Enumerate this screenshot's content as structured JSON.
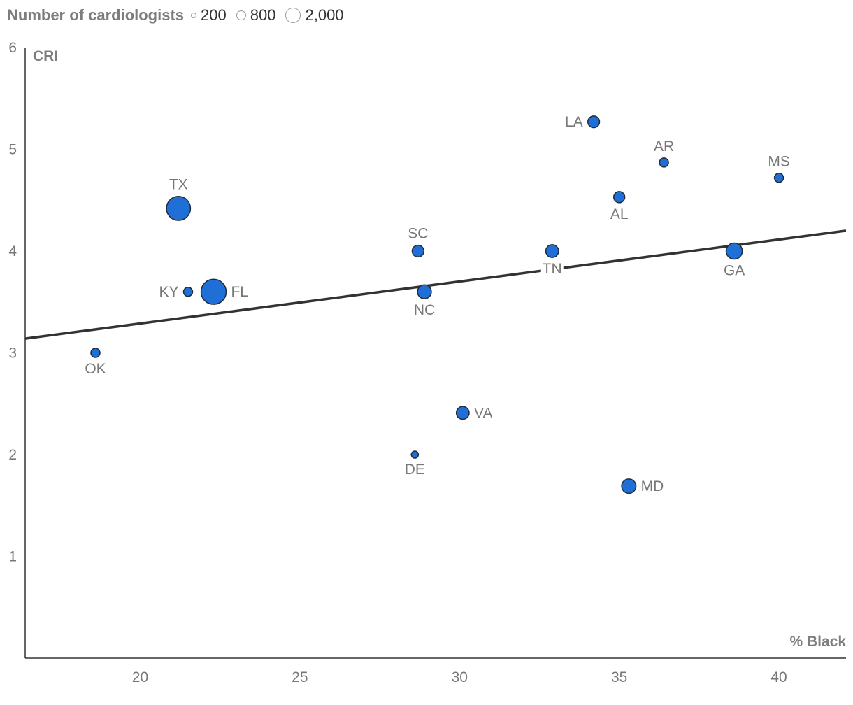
{
  "chart_data": {
    "type": "scatter",
    "xlabel": "% Black",
    "ylabel": "CRI",
    "xlim": [
      16.4,
      42.1
    ],
    "ylim": [
      0,
      6
    ],
    "x_ticks": [
      "20",
      "25",
      "30",
      "35",
      "40"
    ],
    "y_ticks": [
      "1",
      "2",
      "3",
      "4",
      "5",
      "6"
    ],
    "size_legend": {
      "title": "Number of cardiologists",
      "items": [
        {
          "label": "200",
          "value": 200
        },
        {
          "label": "800",
          "value": 800
        },
        {
          "label": "2,000",
          "value": 2000
        }
      ]
    },
    "trend_line": {
      "x": [
        16.4,
        42.1
      ],
      "y": [
        3.14,
        4.2
      ]
    },
    "colors": {
      "point_fill": "#1f6fd6",
      "point_stroke": "#1f2a3a",
      "trend": "#333333"
    },
    "points": [
      {
        "label": "OK",
        "x": 18.6,
        "y": 3.0,
        "size": 300,
        "label_pos": "below"
      },
      {
        "label": "TX",
        "x": 21.2,
        "y": 4.42,
        "size": 2100,
        "label_pos": "above"
      },
      {
        "label": "KY",
        "x": 21.5,
        "y": 3.6,
        "size": 300,
        "label_pos": "left"
      },
      {
        "label": "FL",
        "x": 22.3,
        "y": 3.6,
        "size": 2300,
        "label_pos": "right"
      },
      {
        "label": "DE",
        "x": 28.6,
        "y": 2.0,
        "size": 180,
        "label_pos": "below"
      },
      {
        "label": "SC",
        "x": 28.7,
        "y": 4.0,
        "size": 500,
        "label_pos": "above"
      },
      {
        "label": "NC",
        "x": 28.9,
        "y": 3.6,
        "size": 700,
        "label_pos": "below"
      },
      {
        "label": "VA",
        "x": 30.1,
        "y": 2.41,
        "size": 600,
        "label_pos": "right"
      },
      {
        "label": "TN",
        "x": 32.9,
        "y": 4.0,
        "size": 600,
        "label_pos": "below"
      },
      {
        "label": "LA",
        "x": 34.2,
        "y": 5.27,
        "size": 500,
        "label_pos": "left"
      },
      {
        "label": "AL",
        "x": 35.0,
        "y": 4.53,
        "size": 450,
        "label_pos": "below"
      },
      {
        "label": "MD",
        "x": 35.3,
        "y": 1.69,
        "size": 750,
        "label_pos": "right"
      },
      {
        "label": "AR",
        "x": 36.4,
        "y": 4.87,
        "size": 300,
        "label_pos": "above"
      },
      {
        "label": "GA",
        "x": 38.6,
        "y": 4.0,
        "size": 950,
        "label_pos": "below"
      },
      {
        "label": "MS",
        "x": 40.0,
        "y": 4.72,
        "size": 300,
        "label_pos": "above"
      }
    ]
  }
}
